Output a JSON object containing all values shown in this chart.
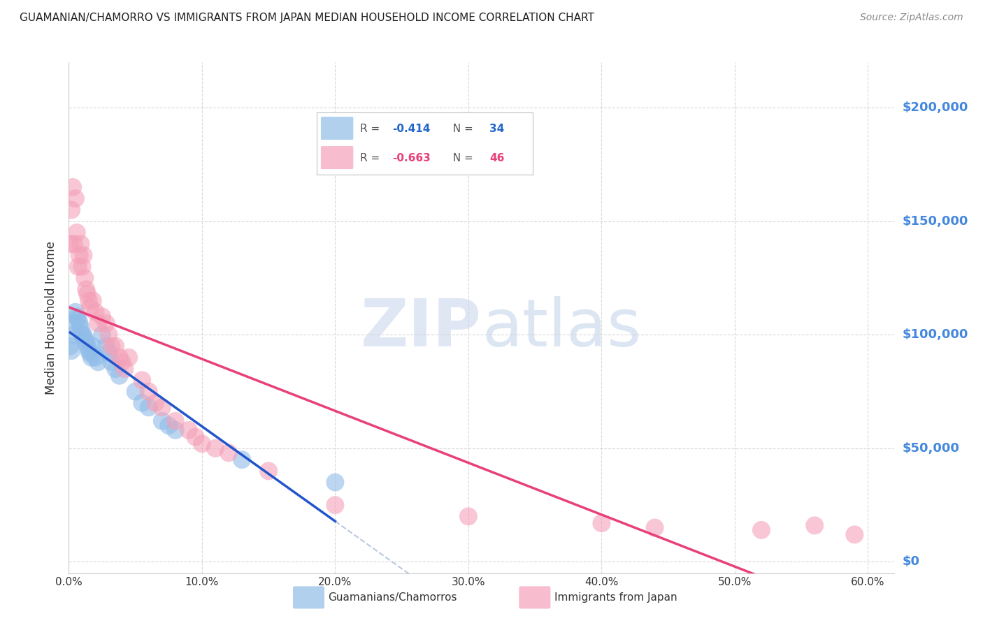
{
  "title": "GUAMANIAN/CHAMORRO VS IMMIGRANTS FROM JAPAN MEDIAN HOUSEHOLD INCOME CORRELATION CHART",
  "source": "Source: ZipAtlas.com",
  "ylabel": "Median Household Income",
  "xlim": [
    0.0,
    0.62
  ],
  "ylim": [
    -5000,
    220000
  ],
  "yticks": [
    0,
    50000,
    100000,
    150000,
    200000
  ],
  "xticks": [
    0.0,
    0.1,
    0.2,
    0.3,
    0.4,
    0.5,
    0.6
  ],
  "xtick_labels": [
    "0.0%",
    "10.0%",
    "20.0%",
    "30.0%",
    "40.0%",
    "50.0%",
    "60.0%"
  ],
  "blue_color": "#90bce8",
  "pink_color": "#f4a0b8",
  "line_blue": "#2255cc",
  "line_pink": "#e8407a",
  "axis_label_color": "#4488dd",
  "grid_color": "#d0d0d0",
  "background_color": "#ffffff",
  "blue_x": [
    0.001,
    0.002,
    0.003,
    0.004,
    0.005,
    0.006,
    0.007,
    0.008,
    0.009,
    0.01,
    0.011,
    0.012,
    0.013,
    0.014,
    0.015,
    0.016,
    0.017,
    0.018,
    0.02,
    0.022,
    0.025,
    0.028,
    0.03,
    0.032,
    0.035,
    0.038,
    0.05,
    0.055,
    0.06,
    0.07,
    0.075,
    0.08,
    0.13,
    0.2
  ],
  "blue_y": [
    95000,
    93000,
    105000,
    100000,
    110000,
    108000,
    107000,
    105000,
    103000,
    100000,
    100000,
    98000,
    97000,
    95000,
    93000,
    92000,
    90000,
    95000,
    90000,
    88000,
    100000,
    95000,
    92000,
    88000,
    85000,
    82000,
    75000,
    70000,
    68000,
    62000,
    60000,
    58000,
    45000,
    35000
  ],
  "pink_x": [
    0.001,
    0.002,
    0.003,
    0.004,
    0.005,
    0.006,
    0.007,
    0.008,
    0.009,
    0.01,
    0.011,
    0.012,
    0.013,
    0.014,
    0.015,
    0.016,
    0.018,
    0.02,
    0.022,
    0.025,
    0.028,
    0.03,
    0.032,
    0.035,
    0.038,
    0.04,
    0.042,
    0.045,
    0.055,
    0.06,
    0.065,
    0.07,
    0.08,
    0.09,
    0.095,
    0.1,
    0.11,
    0.12,
    0.15,
    0.2,
    0.3,
    0.4,
    0.44,
    0.52,
    0.56,
    0.59
  ],
  "pink_y": [
    140000,
    155000,
    165000,
    140000,
    160000,
    145000,
    130000,
    135000,
    140000,
    130000,
    135000,
    125000,
    120000,
    118000,
    115000,
    112000,
    115000,
    110000,
    105000,
    108000,
    105000,
    100000,
    95000,
    95000,
    90000,
    88000,
    85000,
    90000,
    80000,
    75000,
    70000,
    68000,
    62000,
    58000,
    55000,
    52000,
    50000,
    48000,
    40000,
    25000,
    20000,
    17000,
    15000,
    14000,
    16000,
    12000
  ],
  "watermark_zip": "ZIP",
  "watermark_atlas": "atlas",
  "legend_R_blue": "-0.414",
  "legend_N_blue": "34",
  "legend_R_pink": "-0.663",
  "legend_N_pink": "46"
}
